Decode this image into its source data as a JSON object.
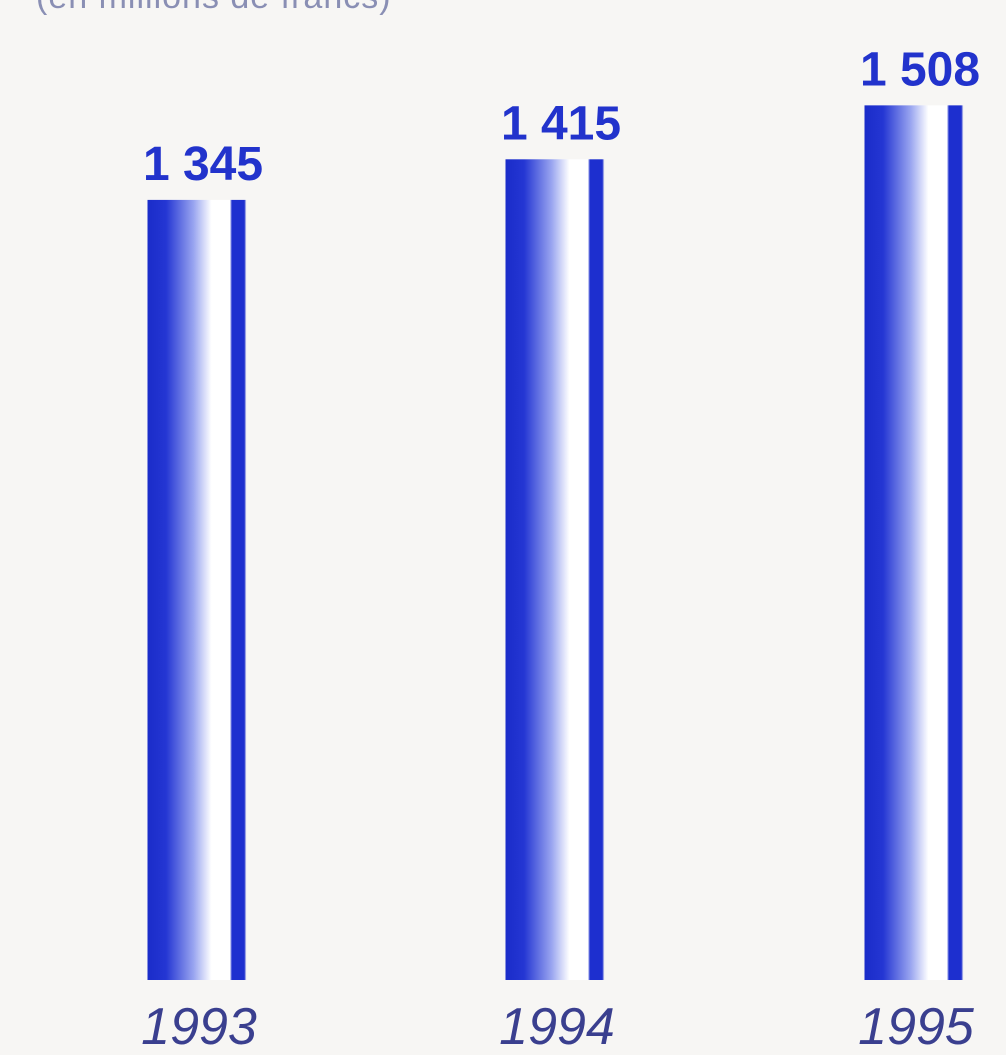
{
  "chart_data": {
    "type": "bar",
    "subtitle": "(en millions de francs)",
    "categories": [
      "1993",
      "1994",
      "1995"
    ],
    "values": [
      1345,
      1415,
      1508
    ],
    "value_labels": [
      "1 345",
      "1 415",
      "1 508"
    ],
    "grid": false,
    "legend": "none"
  },
  "colors": {
    "bar": "#1f2fd0",
    "bar_light": "#ffffff",
    "value_text": "#2233cc",
    "category_text": "#3a3f8f",
    "background": "#f7f6f4"
  }
}
